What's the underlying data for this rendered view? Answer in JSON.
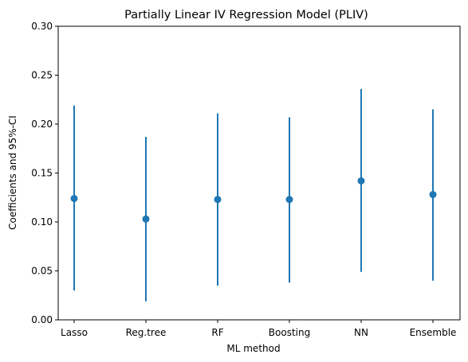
{
  "chart_data": {
    "type": "scatter",
    "title": "Partially Linear IV Regression Model (PLIV)",
    "xlabel": "ML method",
    "ylabel": "Coefficients and 95%-CI",
    "ylim": [
      0.0,
      0.3
    ],
    "yticks": [
      0.0,
      0.05,
      0.1,
      0.15,
      0.2,
      0.25,
      0.3
    ],
    "grid": false,
    "categories": [
      "Lasso",
      "Reg.tree",
      "RF",
      "Boosting",
      "NN",
      "Ensemble"
    ],
    "series": [
      {
        "values": [
          0.124,
          0.103,
          0.123,
          0.123,
          0.142,
          0.128
        ],
        "ci_lower": [
          0.03,
          0.019,
          0.035,
          0.038,
          0.049,
          0.04
        ],
        "ci_upper": [
          0.219,
          0.187,
          0.211,
          0.207,
          0.236,
          0.215
        ],
        "color": "#1f77b4"
      }
    ]
  }
}
